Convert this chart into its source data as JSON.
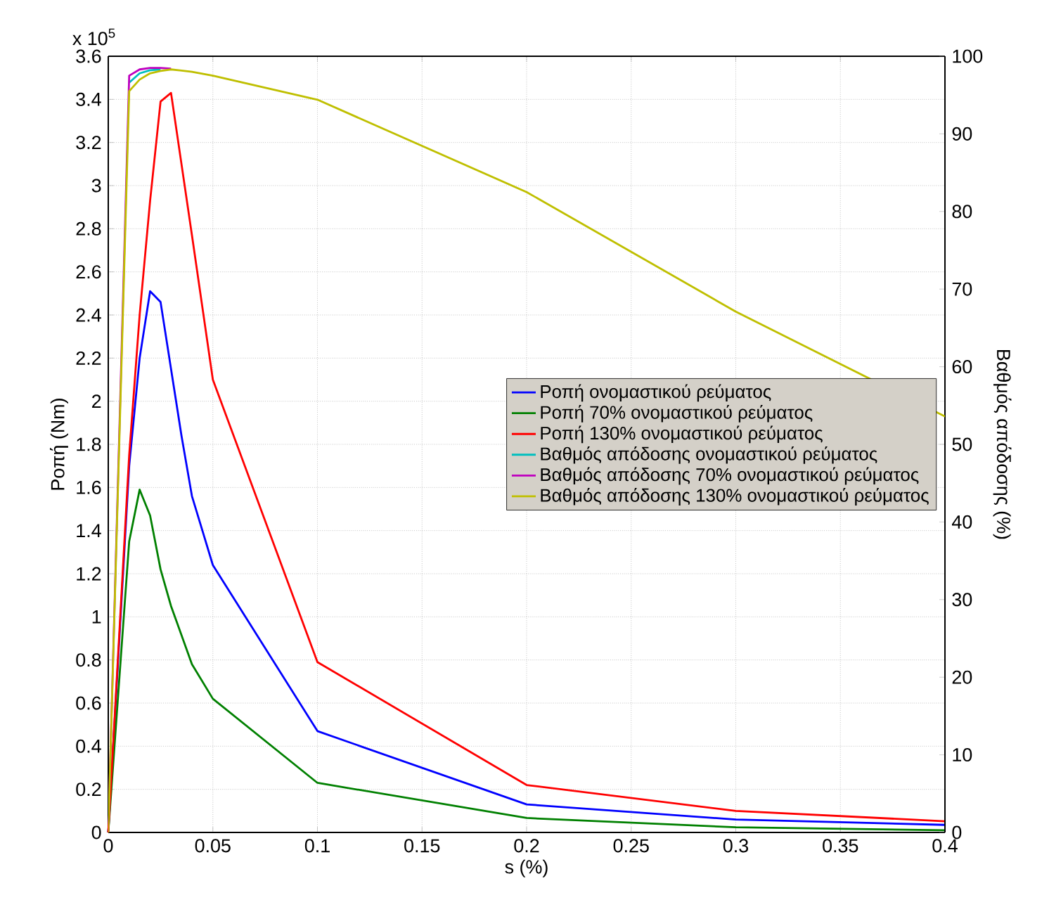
{
  "chart_data": {
    "type": "line",
    "xlabel": "s (%)",
    "ylabel": "Ροπή (Nm)",
    "y2label": "Βαθμός απόδοσης (%)",
    "annotations": [
      "x 10$^{5}$"
    ],
    "xlim": [
      0,
      0.4
    ],
    "xticks": [
      0,
      0.05,
      0.1,
      0.15,
      0.2,
      0.25,
      0.3,
      0.35,
      0.4
    ],
    "ylim": [
      0,
      3.6
    ],
    "yticks": [
      0,
      0.2,
      0.4,
      0.6,
      0.8,
      1,
      1.2,
      1.4,
      1.6,
      1.8,
      2,
      2.2,
      2.4,
      2.6,
      2.8,
      3,
      3.2,
      3.4,
      3.6
    ],
    "y2lim": [
      0,
      100
    ],
    "y2ticks": [
      0,
      10,
      20,
      30,
      40,
      50,
      60,
      70,
      80,
      90,
      100
    ],
    "grid": true,
    "legend": "right",
    "marker": "none",
    "line_style": "solid",
    "series": [
      {
        "name": "Ροπή ονομαστικού ρεύματος",
        "color": "#0000ff",
        "x": [
          0,
          0.01,
          0.015,
          0.02,
          0.025,
          0.03,
          0.035,
          0.04,
          0.05,
          0.1,
          0.2,
          0.3,
          0.4
        ],
        "values": [
          0,
          1.7,
          2.2,
          2.51,
          2.46,
          2.15,
          1.84,
          1.56,
          1.24,
          0.47,
          0.13,
          0.06,
          0.035
        ]
      },
      {
        "name": "Ροπή 70% ονομαστικού ρεύματος",
        "color": "#008000",
        "x": [
          0,
          0.01,
          0.015,
          0.02,
          0.025,
          0.03,
          0.035,
          0.04,
          0.05,
          0.1,
          0.2,
          0.3,
          0.4
        ],
        "values": [
          0,
          1.35,
          1.59,
          1.47,
          1.22,
          1.05,
          0.915,
          0.78,
          0.62,
          0.23,
          0.067,
          0.024,
          0.01
        ]
      },
      {
        "name": "Ροπή 130% ονομαστικού ρεύματος",
        "color": "#ff0000",
        "x": [
          0,
          0.01,
          0.015,
          0.02,
          0.025,
          0.03,
          0.035,
          0.04,
          0.05,
          0.1,
          0.2,
          0.3,
          0.4
        ],
        "values": [
          0,
          1.75,
          2.4,
          2.93,
          3.39,
          3.43,
          3.1,
          2.77,
          2.1,
          0.79,
          0.22,
          0.1,
          0.052
        ]
      },
      {
        "name": "Βαθμός απόδοσης ονομαστικού ρεύματος",
        "color": "#00bfbf",
        "axis": "y2",
        "x": [
          0.01,
          0.015,
          0.02,
          0.025
        ],
        "values": [
          96.6,
          97.8,
          98.2,
          98.3
        ]
      },
      {
        "name": "Βαθμός απόδοσης 70% ονομαστικού ρεύματος",
        "color": "#bf00bf",
        "axis": "y2",
        "x": [
          0,
          0.01,
          0.015,
          0.02,
          0.025,
          0.03
        ],
        "values": [
          0,
          97.5,
          98.3,
          98.5,
          98.5,
          98.4
        ]
      },
      {
        "name": "Βαθμός απόδοσης 130% ονομαστικού ρεύματος",
        "color": "#bfbf00",
        "axis": "y2",
        "x": [
          0,
          0.01,
          0.015,
          0.02,
          0.025,
          0.03,
          0.04,
          0.05,
          0.1,
          0.2,
          0.3,
          0.4
        ],
        "values": [
          0,
          95.5,
          97.0,
          97.8,
          98.1,
          98.3,
          98.0,
          97.5,
          94.4,
          82.5,
          67.1,
          53.6
        ]
      }
    ]
  }
}
